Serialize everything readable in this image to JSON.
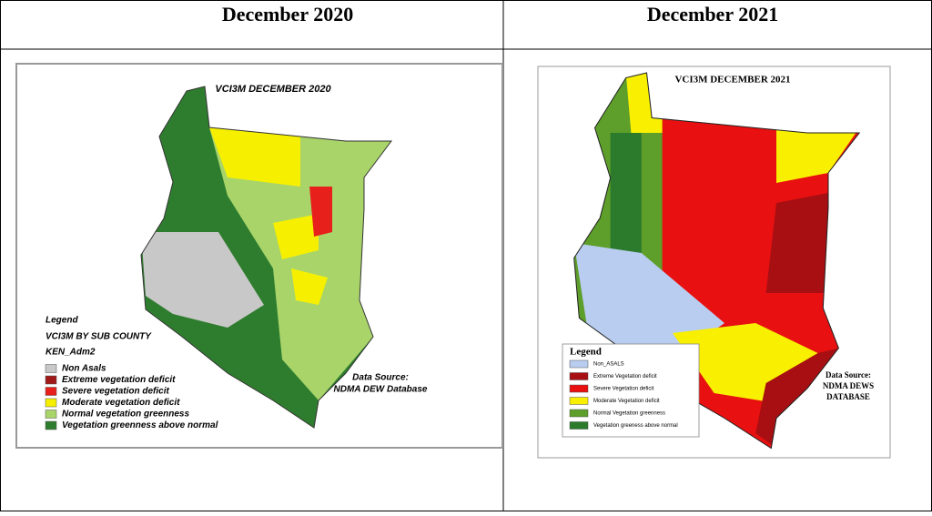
{
  "header": {
    "left": "December 2020",
    "right": "December 2021"
  },
  "left_map": {
    "title": "VCI3M DECEMBER 2020",
    "legend": {
      "title": "Legend",
      "subtitle": "VCI3M BY SUB COUNTY",
      "layer": "KEN_Adm2",
      "items": [
        {
          "label": "Non Asals",
          "color": "#c8c8c8"
        },
        {
          "label": "Extreme vegetation deficit",
          "color": "#a01818"
        },
        {
          "label": "Severe vegetation deficit",
          "color": "#e8201c"
        },
        {
          "label": "Moderate vegetation deficit",
          "color": "#f6f000"
        },
        {
          "label": "Normal vegetation greenness",
          "color": "#a8d46a"
        },
        {
          "label": "Vegetation greenness above normal",
          "color": "#2e7d2e"
        }
      ]
    },
    "data_source": [
      "Data Source:",
      "NDMA DEW Database"
    ]
  },
  "right_map": {
    "title": "VCI3M DECEMBER 2021",
    "legend": {
      "title": "Legend",
      "items": [
        {
          "label": "Non_ASALS",
          "color": "#b8cdf0"
        },
        {
          "label": "Extreme Vegetation deficit",
          "color": "#a80f12"
        },
        {
          "label": "Severe Vegetation deficit",
          "color": "#e81010"
        },
        {
          "label": "Moderate Vegetation deficit",
          "color": "#f8f000"
        },
        {
          "label": "Normal Vegetation greenness",
          "color": "#5e9e2a"
        },
        {
          "label": "Vegetation greeness above normal",
          "color": "#2c7a2c"
        }
      ]
    },
    "data_source": [
      "Data Source:",
      "NDMA DEWS",
      "DATABASE"
    ]
  }
}
